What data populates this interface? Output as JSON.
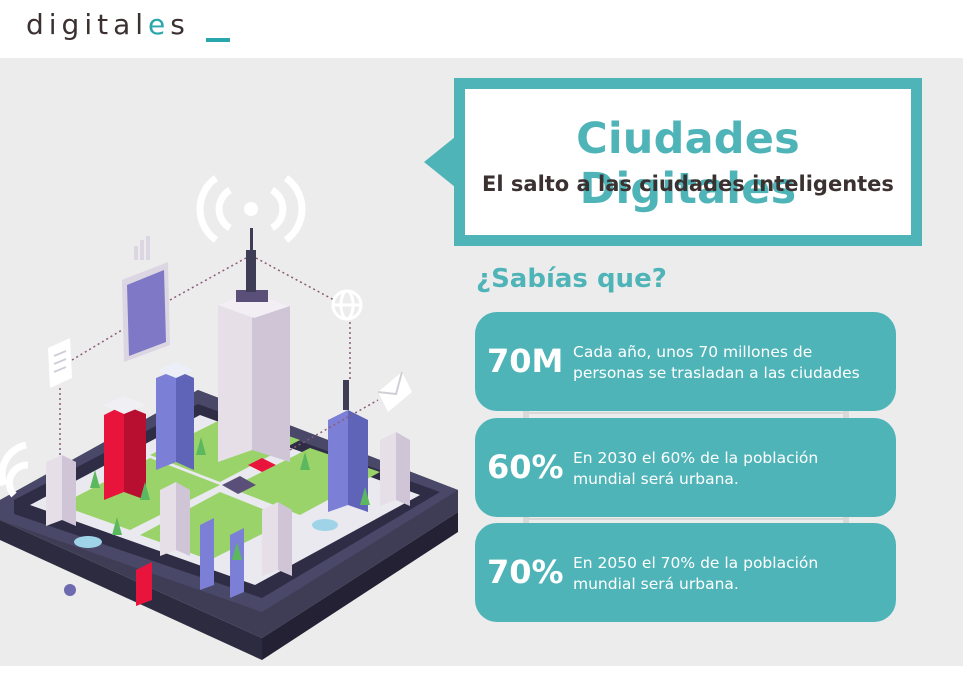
{
  "logo": {
    "pre": "digital",
    "e": "e",
    "post": "s"
  },
  "title": "Ciudades Digitales",
  "subtitle": "El salto a las ciudades inteligentes",
  "question": "¿Sabías que?",
  "stats": [
    {
      "number": "70M",
      "line1": "Cada año, unos 70 millones de",
      "line2": "personas se trasladan a las ciudades"
    },
    {
      "number": "60%",
      "line1": "En 2030 el 60% de la población",
      "line2": "mundial será urbana."
    },
    {
      "number": "70%",
      "line1": "En 2050 el 70% de la población",
      "line2": "mundial será urbana."
    }
  ],
  "colors": {
    "teal": "#4fb4b8",
    "dark": "#3b3131",
    "background": "#ececec"
  },
  "illustration": "isometric-smart-city-on-tablet"
}
